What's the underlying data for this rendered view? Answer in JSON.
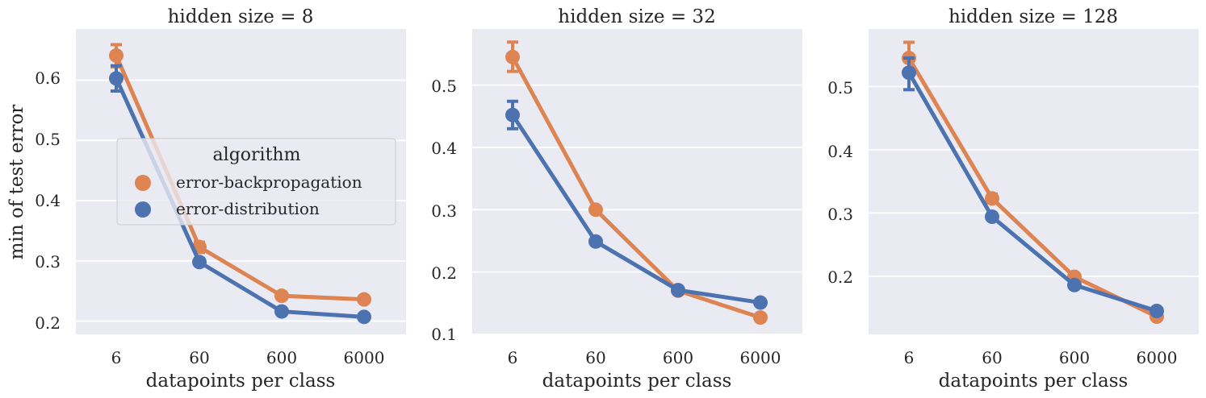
{
  "chart_data": [
    {
      "type": "line",
      "title": "hidden size = 8",
      "xlabel": "datapoints per class",
      "ylabel": "min of test error",
      "categories": [
        "6",
        "60",
        "600",
        "6000"
      ],
      "ylim": [
        0.178,
        0.685
      ],
      "yticks": [
        "0.2",
        "0.3",
        "0.4",
        "0.5",
        "0.6"
      ],
      "series": [
        {
          "name": "error-backpropagation",
          "values": [
            0.641,
            0.323,
            0.242,
            0.236
          ],
          "err_low": [
            0.622,
            0.314,
            0.24,
            0.234
          ],
          "err_high": [
            0.659,
            0.331,
            0.244,
            0.238
          ]
        },
        {
          "name": "error-distribution",
          "values": [
            0.603,
            0.298,
            0.216,
            0.207
          ],
          "err_low": [
            0.582,
            0.293,
            0.214,
            0.205
          ],
          "err_high": [
            0.624,
            0.304,
            0.218,
            0.209
          ]
        }
      ],
      "legend": {
        "title": "algorithm",
        "entries": [
          "error-backpropagation",
          "error-distribution"
        ],
        "position": "center-right"
      },
      "grid": true
    },
    {
      "type": "line",
      "title": "hidden size = 32",
      "xlabel": "datapoints per class",
      "ylabel": "",
      "categories": [
        "6",
        "60",
        "600",
        "6000"
      ],
      "ylim": [
        0.1,
        0.59
      ],
      "yticks": [
        "0.1",
        "0.2",
        "0.3",
        "0.4",
        "0.5"
      ],
      "series": [
        {
          "name": "error-backpropagation",
          "values": [
            0.545,
            0.3,
            0.17,
            0.127
          ],
          "err_low": [
            0.522,
            0.298,
            0.168,
            0.125
          ],
          "err_high": [
            0.569,
            0.302,
            0.172,
            0.129
          ]
        },
        {
          "name": "error-distribution",
          "values": [
            0.452,
            0.249,
            0.171,
            0.151
          ],
          "err_low": [
            0.43,
            0.247,
            0.169,
            0.149
          ],
          "err_high": [
            0.474,
            0.251,
            0.173,
            0.153
          ]
        }
      ],
      "grid": true
    },
    {
      "type": "line",
      "title": "hidden size = 128",
      "xlabel": "datapoints per class",
      "ylabel": "",
      "categories": [
        "6",
        "60",
        "600",
        "6000"
      ],
      "ylim": [
        0.108,
        0.591
      ],
      "yticks": [
        "0.2",
        "0.3",
        "0.4",
        "0.5"
      ],
      "series": [
        {
          "name": "error-backpropagation",
          "values": [
            0.545,
            0.323,
            0.199,
            0.136
          ],
          "err_low": [
            0.52,
            0.316,
            0.197,
            0.134
          ],
          "err_high": [
            0.57,
            0.33,
            0.201,
            0.138
          ]
        },
        {
          "name": "error-distribution",
          "values": [
            0.522,
            0.294,
            0.186,
            0.145
          ],
          "err_low": [
            0.495,
            0.292,
            0.184,
            0.143
          ],
          "err_high": [
            0.545,
            0.296,
            0.188,
            0.147
          ]
        }
      ],
      "grid": true
    }
  ],
  "colors": {
    "error-backpropagation": "#dd8452",
    "error-distribution": "#4c72b0",
    "panel_background": "#eaeaf2",
    "grid": "#ffffff"
  }
}
